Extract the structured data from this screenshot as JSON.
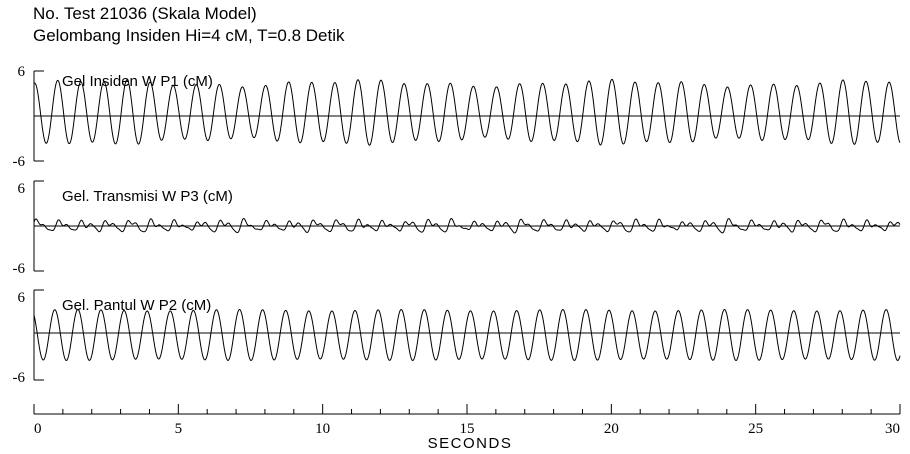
{
  "header": {
    "line1": "No. Test 21036 (Skala Model)",
    "line2": "Gelombang Insiden Hi=4 cM, T=0.8 Detik"
  },
  "chart_data": {
    "type": "line",
    "xlabel": "SECONDS",
    "xlim": [
      0,
      30
    ],
    "x_ticks": [
      "0",
      "5",
      "10",
      "15",
      "20",
      "25",
      "30"
    ],
    "x_major_step": 5,
    "x_minor_step": 1,
    "wave_period_s": 0.8,
    "series": [
      {
        "name": "Gel Insiden W P1 (cM)",
        "ylim": [
          -6,
          6
        ],
        "y_ticks": [
          "6",
          "-6"
        ],
        "amplitude_cm": 4.2,
        "mean_cm": 0.5
      },
      {
        "name": "Gel. Transmisi W P3 (cM)",
        "ylim": [
          -6,
          6
        ],
        "y_ticks": [
          "6",
          "-6"
        ],
        "amplitude_cm": 0.9,
        "mean_cm": 0
      },
      {
        "name": "Gel. Pantul W P2 (cM)",
        "ylim": [
          -6,
          6
        ],
        "y_ticks": [
          "6",
          "-6"
        ],
        "amplitude_cm": 3.4,
        "mean_cm": 0
      }
    ]
  }
}
